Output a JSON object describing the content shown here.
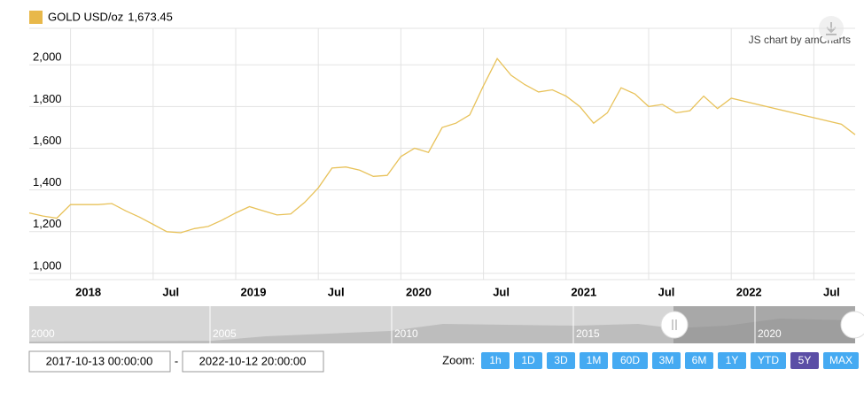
{
  "chart_data": {
    "type": "line",
    "series": [
      {
        "name": "GOLD USD/oz",
        "color": "#e8c25a",
        "x": [
          "2017-10",
          "2017-11",
          "2017-12",
          "2018-01",
          "2018-02",
          "2018-03",
          "2018-04",
          "2018-05",
          "2018-06",
          "2018-07",
          "2018-08",
          "2018-09",
          "2018-10",
          "2018-11",
          "2018-12",
          "2019-01",
          "2019-02",
          "2019-03",
          "2019-04",
          "2019-05",
          "2019-06",
          "2019-07",
          "2019-08",
          "2019-09",
          "2019-10",
          "2019-11",
          "2019-12",
          "2020-01",
          "2020-02",
          "2020-03",
          "2020-04",
          "2020-05",
          "2020-06",
          "2020-07",
          "2020-08",
          "2020-09",
          "2020-10",
          "2020-11",
          "2020-12",
          "2021-01",
          "2021-02",
          "2021-03",
          "2021-04",
          "2021-05",
          "2021-06",
          "2021-07",
          "2021-08",
          "2021-09",
          "2021-10",
          "2021-11",
          "2021-12",
          "2022-01",
          "2022-09",
          "2022-10"
        ],
        "values": [
          1290,
          1275,
          1265,
          1330,
          1330,
          1330,
          1335,
          1300,
          1270,
          1235,
          1200,
          1195,
          1215,
          1225,
          1255,
          1290,
          1320,
          1300,
          1280,
          1285,
          1340,
          1410,
          1505,
          1510,
          1495,
          1465,
          1470,
          1560,
          1600,
          1580,
          1700,
          1720,
          1760,
          1900,
          2030,
          1950,
          1905,
          1870,
          1880,
          1850,
          1800,
          1720,
          1770,
          1890,
          1860,
          1800,
          1810,
          1770,
          1780,
          1850,
          1790,
          1840,
          1715,
          1665
        ]
      }
    ],
    "legend_value": "1,673.45",
    "credit": "JS chart by amCharts",
    "xlim": [
      "2017-10",
      "2022-10"
    ],
    "xticks": [
      {
        "value": "2018-01",
        "label": "2018"
      },
      {
        "value": "2018-07",
        "label": "Jul"
      },
      {
        "value": "2019-01",
        "label": "2019"
      },
      {
        "value": "2019-07",
        "label": "Jul"
      },
      {
        "value": "2020-01",
        "label": "2020"
      },
      {
        "value": "2020-07",
        "label": "Jul"
      },
      {
        "value": "2021-01",
        "label": "2021"
      },
      {
        "value": "2021-07",
        "label": "Jul"
      },
      {
        "value": "2022-01",
        "label": "2022"
      },
      {
        "value": "2022-07",
        "label": "Jul"
      }
    ],
    "ylim": [
      970,
      2175
    ],
    "yticks": [
      {
        "value": 1000,
        "label": "1,000"
      },
      {
        "value": 1200,
        "label": "1,200"
      },
      {
        "value": 1400,
        "label": "1,400"
      },
      {
        "value": 1600,
        "label": "1,600"
      },
      {
        "value": 1800,
        "label": "1,800"
      },
      {
        "value": 2000,
        "label": "2,000"
      }
    ],
    "grid": true
  },
  "navigator": {
    "labels": [
      "2000",
      "2005",
      "2010",
      "2015",
      "2020"
    ]
  },
  "controls": {
    "from": "2017-10-13 00:00:00",
    "separator": "-",
    "to": "2022-10-12 20:00:00",
    "zoom_label": "Zoom:",
    "zoom_buttons": [
      "1h",
      "1D",
      "3D",
      "1M",
      "60D",
      "3M",
      "6M",
      "1Y",
      "YTD",
      "5Y",
      "MAX"
    ],
    "selected": "5Y"
  }
}
